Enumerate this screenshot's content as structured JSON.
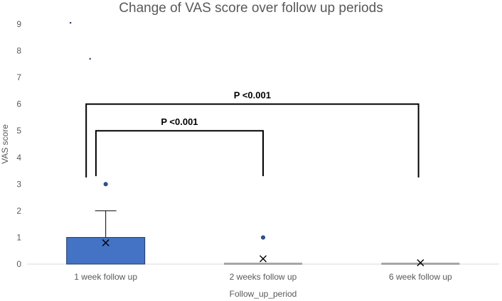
{
  "chart_data": {
    "type": "box",
    "title": "Change of VAS score over follow up periods",
    "xlabel": "Follow_up_period",
    "ylabel": "VAS score",
    "ylim": [
      0,
      9
    ],
    "yticks": [
      0,
      1,
      2,
      3,
      4,
      5,
      6,
      7,
      8,
      9
    ],
    "grid": false,
    "categories": [
      "1 week follow up",
      "2 weeks follow up",
      "6 week follow up"
    ],
    "boxes": [
      {
        "category": "1 week follow up",
        "q1": 0,
        "median": 0,
        "q3": 1,
        "whisker_low": 0,
        "whisker_high": 2,
        "mean": 0.8,
        "outliers": [
          3
        ]
      },
      {
        "category": "2 weeks follow up",
        "q1": 0,
        "median": 0,
        "q3": 0,
        "whisker_low": 0,
        "whisker_high": 0,
        "mean": 0.2,
        "outliers": [
          1
        ]
      },
      {
        "category": "6 week follow up",
        "q1": 0,
        "median": 0,
        "q3": 0,
        "whisker_low": 0,
        "whisker_high": 0,
        "mean": 0.05,
        "outliers": []
      }
    ],
    "stray_points": [
      {
        "category": "1 week follow up",
        "offset": -0.9,
        "value": 9.05
      },
      {
        "category": "1 week follow up",
        "offset": -0.4,
        "value": 7.7
      }
    ],
    "comparisons": [
      {
        "from": "1 week follow up",
        "to": "2 weeks follow up",
        "label": "P <0.001",
        "level": 5.0,
        "drop_to": 3.3
      },
      {
        "from": "1 week follow up",
        "to": "6 week follow up",
        "label": "P <0.001",
        "level": 6.0,
        "drop_to": 3.25
      }
    ],
    "colors": {
      "box_fill": "#4472c4",
      "box_edge": "#1f3864",
      "outlier": "#2f5597",
      "text": "#595959",
      "axis": "#d9d9d9",
      "bracket": "#000000"
    }
  }
}
